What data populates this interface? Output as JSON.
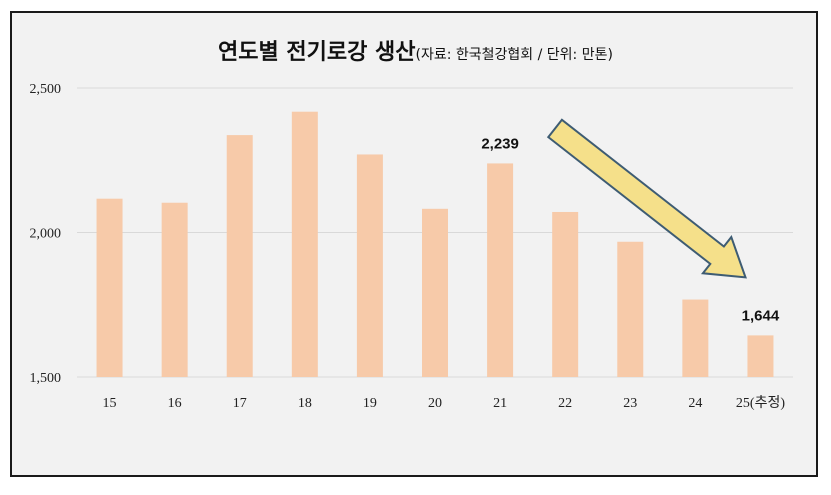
{
  "chart_data": {
    "type": "bar",
    "title": "연도별 전기로강 생산",
    "subtitle": "(자료: 한국철강협회 / 단위: 만톤)",
    "xlabel": "",
    "ylabel": "",
    "categories": [
      "15",
      "16",
      "17",
      "18",
      "19",
      "20",
      "21",
      "22",
      "23",
      "24",
      "25(추정)"
    ],
    "values": [
      2117,
      2103,
      2337,
      2418,
      2270,
      2082,
      2239,
      2071,
      1968,
      1768,
      1644
    ],
    "ylim": [
      1500,
      2500
    ],
    "yticks": [
      1500,
      2000,
      2500
    ],
    "ytick_labels": [
      "1,500",
      "2,000",
      "2,500"
    ],
    "data_labels": [
      {
        "index": 6,
        "text": "2,239"
      },
      {
        "index": 10,
        "text": "1,644"
      }
    ],
    "annotation": {
      "type": "arrow",
      "from_index": 6,
      "to_index": 10,
      "color": "#f5e08a"
    },
    "grid": true,
    "legend": "none",
    "bar_color": "#f7caa9",
    "grid_color": "#d9d9d9",
    "background": "#f2f2f2"
  }
}
